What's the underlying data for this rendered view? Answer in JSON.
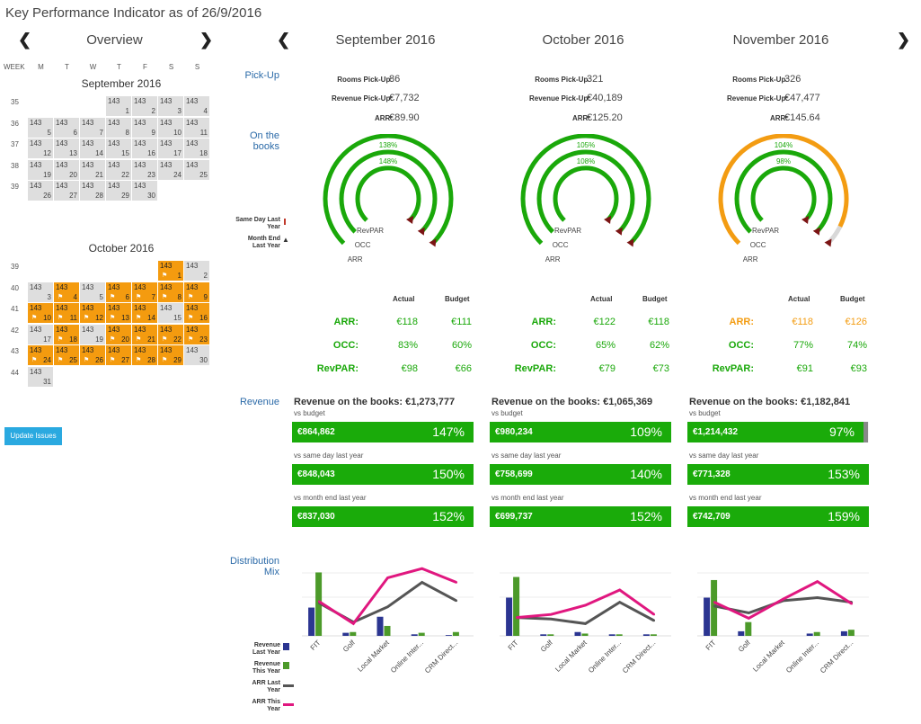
{
  "page": {
    "title": "Key Performance Indicator as of 26/9/2016",
    "overview_title": "Overview",
    "prev_icon": "chevron-left-icon",
    "next_icon": "chevron-right-icon",
    "arrow_left": "❮",
    "arrow_right": "❯"
  },
  "calendar": {
    "day_headers": [
      "WEEK",
      "M",
      "T",
      "W",
      "T",
      "F",
      "S",
      "S"
    ],
    "cell_top_value": "143",
    "colors": {
      "grey": "#dedede",
      "orange": "#f49b0f"
    },
    "months": [
      {
        "name": "September 2016",
        "weeks": [
          {
            "week": "35",
            "days": [
              "",
              "",
              "",
              "1",
              "2",
              "3",
              "4"
            ]
          },
          {
            "week": "36",
            "days": [
              "5",
              "6",
              "7",
              "8",
              "9",
              "10",
              "11"
            ]
          },
          {
            "week": "37",
            "days": [
              "12",
              "13",
              "14",
              "15",
              "16",
              "17",
              "18"
            ]
          },
          {
            "week": "38",
            "days": [
              "19",
              "20",
              "21",
              "22",
              "23",
              "24",
              "25"
            ]
          },
          {
            "week": "39",
            "days": [
              "26",
              "27",
              "28",
              "29",
              "30",
              "",
              ""
            ]
          }
        ],
        "orange_days": []
      },
      {
        "name": "October 2016",
        "weeks": [
          {
            "week": "39",
            "days": [
              "",
              "",
              "",
              "",
              "",
              "1",
              "2"
            ]
          },
          {
            "week": "40",
            "days": [
              "3",
              "4",
              "5",
              "6",
              "7",
              "8",
              "9"
            ]
          },
          {
            "week": "41",
            "days": [
              "10",
              "11",
              "12",
              "13",
              "14",
              "15",
              "16"
            ]
          },
          {
            "week": "42",
            "days": [
              "17",
              "18",
              "19",
              "20",
              "21",
              "22",
              "23"
            ]
          },
          {
            "week": "43",
            "days": [
              "24",
              "25",
              "26",
              "27",
              "28",
              "29",
              "30"
            ]
          },
          {
            "week": "44",
            "days": [
              "31",
              "",
              "",
              "",
              "",
              "",
              ""
            ]
          }
        ],
        "orange_days": [
          "1",
          "4",
          "6",
          "7",
          "8",
          "9",
          "10",
          "11",
          "12",
          "13",
          "14",
          "16",
          "18",
          "20",
          "21",
          "22",
          "23",
          "24",
          "25",
          "26",
          "27",
          "28",
          "29"
        ]
      }
    ],
    "update_button": "Update Issues"
  },
  "sections": {
    "pickup": "Pick-Up",
    "onbooks": "On the books",
    "revenue": "Revenue",
    "distribution": "Distribution Mix"
  },
  "gauge_legend": {
    "same_day": "Same Day Last Year",
    "month_end": "Month End Last Year"
  },
  "labels": {
    "rooms_pickup": "Rooms Pick-Up:",
    "revenue_pickup": "Revenue Pick-Up:",
    "arr": "ARR:",
    "actual": "Actual",
    "budget": "Budget",
    "kpi_arr": "ARR:",
    "kpi_occ": "OCC:",
    "kpi_revpar": "RevPAR:",
    "ring_arr": "ARR",
    "ring_occ": "OCC",
    "ring_revpar": "RevPAR",
    "vs_budget": "vs budget",
    "vs_same_day": "vs same day last year",
    "vs_month_end": "vs month end last year",
    "rev_prefix": "Revenue on the books: "
  },
  "months": [
    {
      "title": "September 2016",
      "rooms_pickup": "86",
      "revenue_pickup": "€7,732",
      "arr": "€89.90",
      "gauge": {
        "revpar_pct": "148%",
        "occ_pct": "138%",
        "arr_pct": "106%",
        "revpar": 1.48,
        "occ": 1.38,
        "arr": 1.06,
        "colors": [
          "#1aa80a",
          "#1aa80a",
          "#1aa80a"
        ]
      },
      "kpi": {
        "arr_actual": "€118",
        "arr_budget": "€111",
        "occ_actual": "83%",
        "occ_budget": "60%",
        "revpar_actual": "€98",
        "revpar_budget": "€66",
        "colors": [
          "#1aa80a",
          "#1aa80a",
          "#1aa80a"
        ]
      },
      "revenue_total": "€1,273,777",
      "bars": [
        {
          "amount": "€864,862",
          "pct": "147%",
          "fill": 1.0
        },
        {
          "amount": "€848,043",
          "pct": "150%",
          "fill": 1.0
        },
        {
          "amount": "€837,030",
          "pct": "152%",
          "fill": 1.0
        }
      ]
    },
    {
      "title": "October 2016",
      "rooms_pickup": "321",
      "revenue_pickup": "€40,189",
      "arr": "€125.20",
      "gauge": {
        "revpar_pct": "108%",
        "occ_pct": "105%",
        "arr_pct": "104%",
        "revpar": 1.08,
        "occ": 1.05,
        "arr": 1.04,
        "colors": [
          "#1aa80a",
          "#1aa80a",
          "#1aa80a"
        ]
      },
      "kpi": {
        "arr_actual": "€122",
        "arr_budget": "€118",
        "occ_actual": "65%",
        "occ_budget": "62%",
        "revpar_actual": "€79",
        "revpar_budget": "€73",
        "colors": [
          "#1aa80a",
          "#1aa80a",
          "#1aa80a"
        ]
      },
      "revenue_total": "€1,065,369",
      "bars": [
        {
          "amount": "€980,234",
          "pct": "109%",
          "fill": 1.0
        },
        {
          "amount": "€758,699",
          "pct": "140%",
          "fill": 1.0
        },
        {
          "amount": "€699,737",
          "pct": "152%",
          "fill": 1.0
        }
      ]
    },
    {
      "title": "November 2016",
      "rooms_pickup": "326",
      "revenue_pickup": "€47,477",
      "arr": "€145.64",
      "gauge": {
        "revpar_pct": "98%",
        "occ_pct": "104%",
        "arr_pct": "93%",
        "revpar": 0.98,
        "occ": 1.04,
        "arr": 0.93,
        "colors": [
          "#1aa80a",
          "#1aa80a",
          "#f39c12"
        ]
      },
      "kpi": {
        "arr_actual": "€118",
        "arr_budget": "€126",
        "occ_actual": "77%",
        "occ_budget": "74%",
        "revpar_actual": "€91",
        "revpar_budget": "€93",
        "colors": [
          "#f39c12",
          "#1aa80a",
          "#1aa80a"
        ]
      },
      "revenue_total": "€1,182,841",
      "bars": [
        {
          "amount": "€1,214,432",
          "pct": "97%",
          "fill": 0.97
        },
        {
          "amount": "€771,328",
          "pct": "153%",
          "fill": 1.0
        },
        {
          "amount": "€742,709",
          "pct": "159%",
          "fill": 1.0
        }
      ]
    }
  ],
  "distribution_legend": [
    "Revenue Last Year",
    "Revenue This Year",
    "ARR Last Year",
    "ARR This Year"
  ],
  "chart_data": [
    {
      "type": "bar",
      "title": "",
      "categories": [
        "FIT",
        "Golf",
        "Local Market",
        "Online Inter...",
        "CRM Direct..."
      ],
      "series": [
        {
          "name": "Revenue Last Year",
          "type": "bar",
          "color": "#2b3591",
          "values": [
            37,
            4,
            25,
            2,
            1
          ]
        },
        {
          "name": "Revenue This Year",
          "type": "bar",
          "color": "#4c9a2a",
          "values": [
            83,
            5,
            13,
            4,
            5
          ]
        },
        {
          "name": "ARR Last Year",
          "type": "line",
          "color": "#555555",
          "values": [
            43,
            18,
            38,
            70,
            46
          ]
        },
        {
          "name": "ARR This Year",
          "type": "line",
          "color": "#e0177f",
          "values": [
            45,
            16,
            76,
            88,
            70
          ]
        }
      ]
    },
    {
      "type": "bar",
      "title": "",
      "categories": [
        "FIT",
        "Golf",
        "Local Market",
        "Online Inter...",
        "CRM Direct..."
      ],
      "series": [
        {
          "name": "Revenue Last Year",
          "type": "bar",
          "color": "#2b3591",
          "values": [
            50,
            2,
            5,
            2,
            2
          ]
        },
        {
          "name": "Revenue This Year",
          "type": "bar",
          "color": "#4c9a2a",
          "values": [
            77,
            2,
            3,
            2,
            2
          ]
        },
        {
          "name": "ARR Last Year",
          "type": "line",
          "color": "#555555",
          "values": [
            24,
            22,
            16,
            44,
            20
          ]
        },
        {
          "name": "ARR This Year",
          "type": "line",
          "color": "#e0177f",
          "values": [
            24,
            28,
            40,
            60,
            28
          ]
        }
      ]
    },
    {
      "type": "bar",
      "title": "",
      "categories": [
        "FIT",
        "Golf",
        "Local Market",
        "Online Inter...",
        "CRM Direct..."
      ],
      "series": [
        {
          "name": "Revenue Last Year",
          "type": "bar",
          "color": "#2b3591",
          "values": [
            50,
            6,
            0,
            3,
            6
          ]
        },
        {
          "name": "Revenue This Year",
          "type": "bar",
          "color": "#4c9a2a",
          "values": [
            73,
            18,
            0,
            5,
            8
          ]
        },
        {
          "name": "ARR Last Year",
          "type": "line",
          "color": "#555555",
          "values": [
            39,
            30,
            46,
            50,
            44
          ]
        },
        {
          "name": "ARR This Year",
          "type": "line",
          "color": "#e0177f",
          "values": [
            44,
            23,
            48,
            71,
            42
          ]
        }
      ]
    }
  ]
}
